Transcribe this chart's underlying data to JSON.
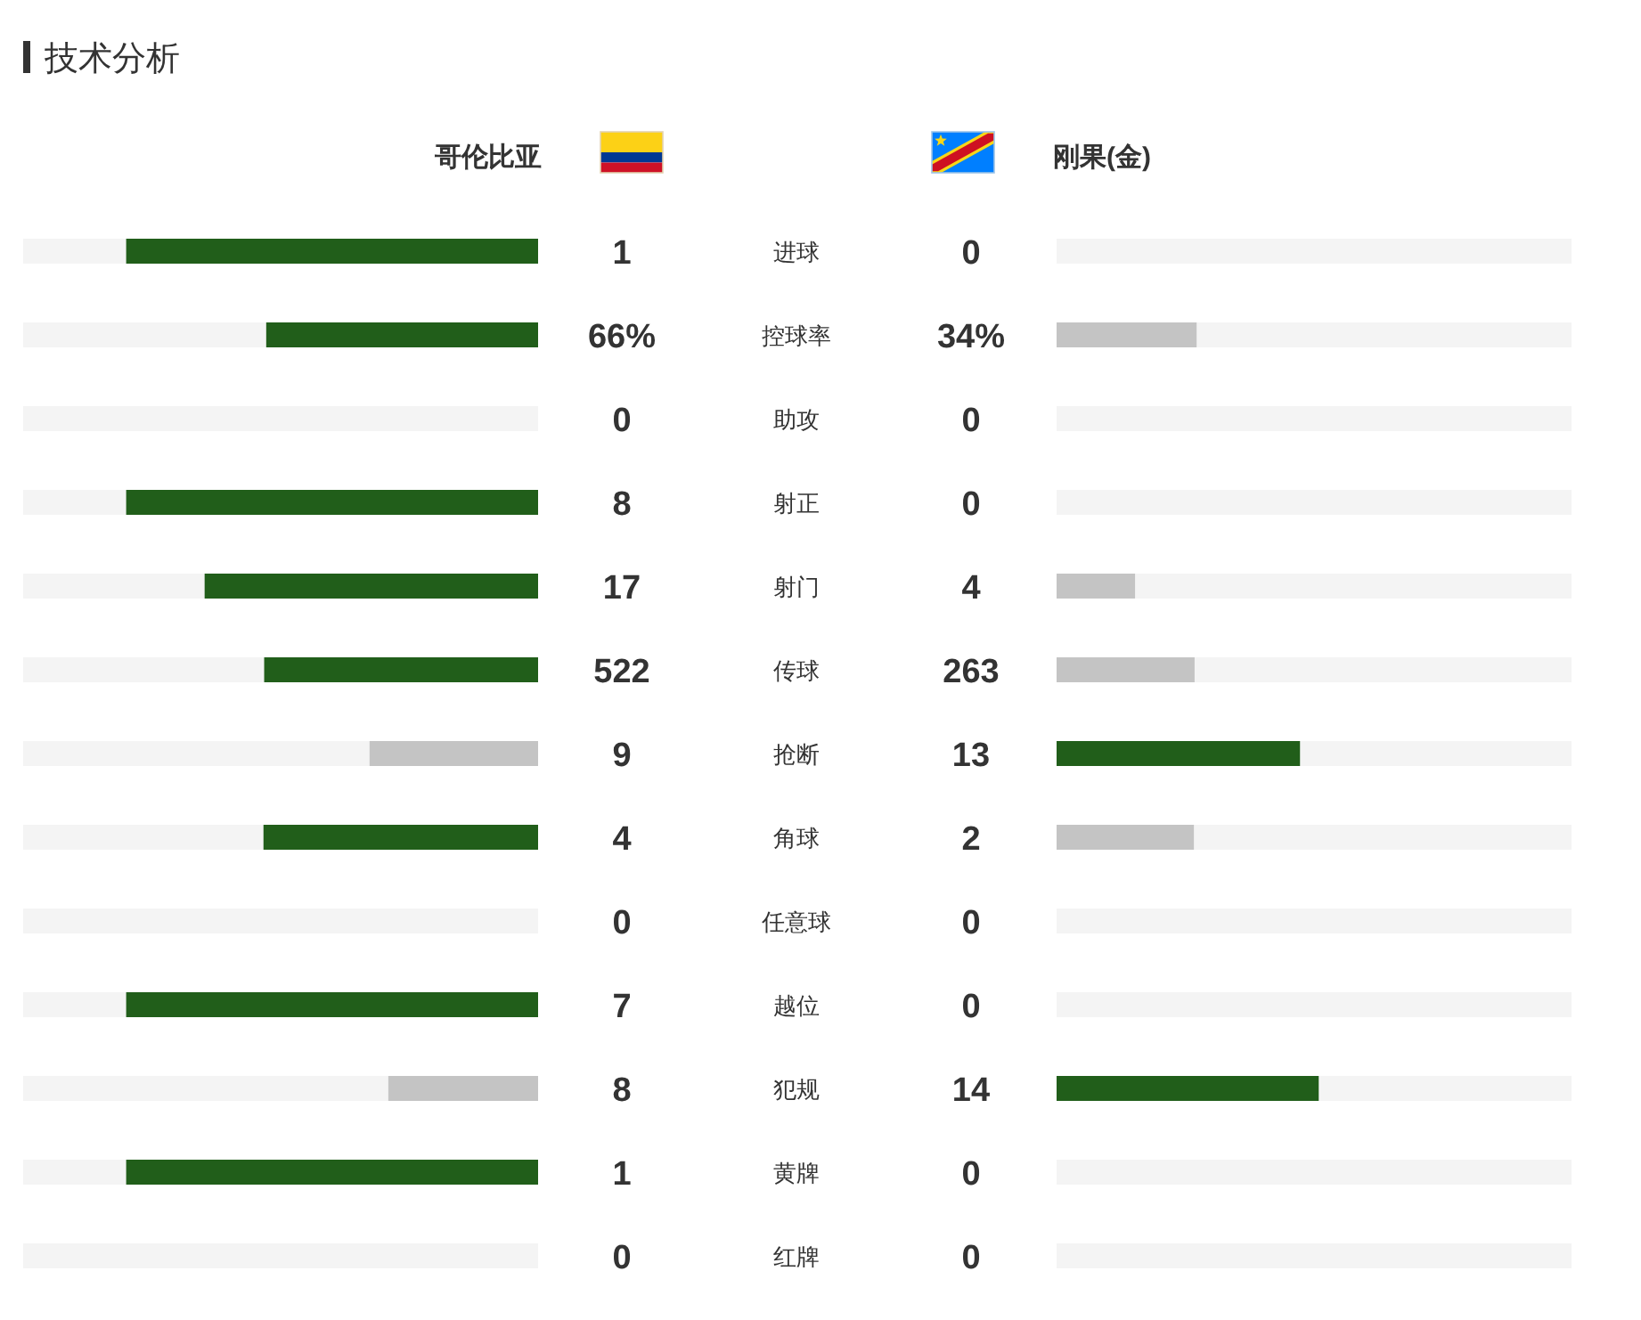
{
  "chart_data": {
    "type": "other",
    "title": "技术分析",
    "categories": [
      "进球",
      "控球率",
      "助攻",
      "射正",
      "射门",
      "传球",
      "抢断",
      "角球",
      "任意球",
      "越位",
      "犯规",
      "黄牌",
      "红牌"
    ],
    "series": [
      {
        "name": "哥伦比亚",
        "values": [
          1,
          66,
          0,
          8,
          17,
          522,
          9,
          4,
          0,
          7,
          8,
          1,
          0
        ],
        "value_labels": [
          "1",
          "66%",
          "0",
          "8",
          "17",
          "522",
          "9",
          "4",
          "0",
          "7",
          "8",
          "1",
          "0"
        ],
        "colors": [
          "#215e1a",
          "#215e1a",
          null,
          "#215e1a",
          "#215e1a",
          "#215e1a",
          "#c4c4c4",
          "#215e1a",
          null,
          "#215e1a",
          "#c4c4c4",
          "#215e1a",
          null
        ]
      },
      {
        "name": "刚果(金)",
        "values": [
          0,
          34,
          0,
          0,
          4,
          263,
          13,
          2,
          0,
          0,
          14,
          0,
          0
        ],
        "value_labels": [
          "0",
          "34%",
          "0",
          "0",
          "4",
          "263",
          "13",
          "2",
          "0",
          "0",
          "14",
          "0",
          "0"
        ],
        "colors": [
          null,
          "#c4c4c4",
          null,
          null,
          "#c4c4c4",
          "#c4c4c4",
          "#215e1a",
          "#c4c4c4",
          null,
          null,
          "#215e1a",
          null,
          null
        ]
      }
    ]
  }
}
